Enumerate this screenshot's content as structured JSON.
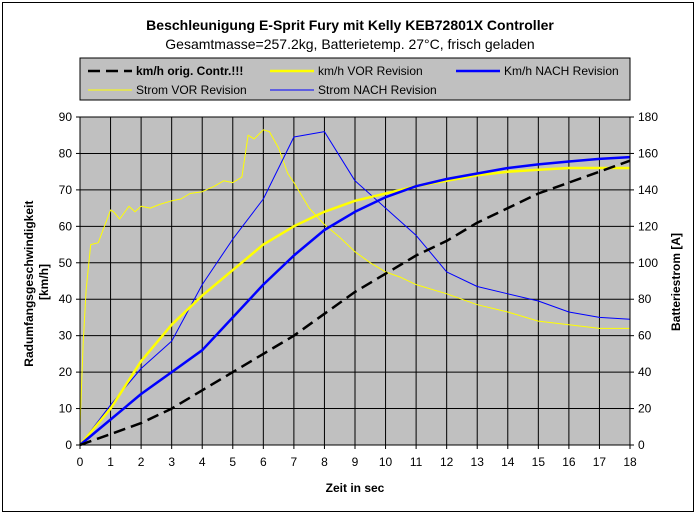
{
  "chart_data": {
    "type": "line",
    "title": "Beschleunigung E-Sprit Fury mit Kelly KEB72801X Controller",
    "subtitle": "Gesamtmasse=257.2kg, Batterietemp. 27°C, frisch geladen",
    "xlabel": "Zeit in sec",
    "ylabel": "Radumfangsgeschwindigkeit [km/h]",
    "y2label": "Batteriestrom [A]",
    "xlim": [
      0,
      18
    ],
    "ylim": [
      0,
      90
    ],
    "y2lim": [
      0,
      180
    ],
    "x_ticks": [
      "0",
      "1",
      "2",
      "3",
      "4",
      "5",
      "6",
      "7",
      "8",
      "9",
      "10",
      "11",
      "12",
      "13",
      "14",
      "15",
      "16",
      "17",
      "18"
    ],
    "y_ticks": [
      "0",
      "10",
      "20",
      "30",
      "40",
      "50",
      "60",
      "70",
      "80",
      "90"
    ],
    "y2_ticks": [
      "0",
      "20",
      "40",
      "60",
      "80",
      "100",
      "120",
      "140",
      "160",
      "180"
    ],
    "grid": true,
    "plot_background": "#c0c0c0",
    "legend_position": "top",
    "series": [
      {
        "name": "km/h orig. Contr.!!!",
        "axis": "left",
        "color": "#000000",
        "dash": "dashed",
        "width": 2.5,
        "points": [
          [
            0,
            0
          ],
          [
            1,
            3
          ],
          [
            2,
            6
          ],
          [
            3,
            10
          ],
          [
            4,
            15
          ],
          [
            5,
            20
          ],
          [
            6,
            25
          ],
          [
            7,
            30
          ],
          [
            8,
            36
          ],
          [
            9,
            42
          ],
          [
            10,
            47
          ],
          [
            11,
            52
          ],
          [
            12,
            56
          ],
          [
            13,
            61
          ],
          [
            14,
            65
          ],
          [
            15,
            69
          ],
          [
            16,
            72
          ],
          [
            17,
            75
          ],
          [
            18,
            78
          ]
        ]
      },
      {
        "name": "km/h VOR Revision",
        "axis": "left",
        "color": "#ffff00",
        "dash": "solid",
        "width": 2.5,
        "points": [
          [
            0,
            0
          ],
          [
            1,
            10
          ],
          [
            2,
            23
          ],
          [
            3,
            33
          ],
          [
            4,
            41
          ],
          [
            5,
            48
          ],
          [
            6,
            55
          ],
          [
            7,
            60
          ],
          [
            8,
            64
          ],
          [
            9,
            67
          ],
          [
            10,
            69
          ],
          [
            11,
            71
          ],
          [
            12,
            72.5
          ],
          [
            13,
            74
          ],
          [
            14,
            75
          ],
          [
            15,
            75.5
          ],
          [
            16,
            76
          ],
          [
            17,
            76
          ],
          [
            18,
            76
          ]
        ]
      },
      {
        "name": "Km/h NACH Revision",
        "axis": "left",
        "color": "#0000ff",
        "dash": "solid",
        "width": 2.5,
        "points": [
          [
            0,
            0
          ],
          [
            1,
            7
          ],
          [
            2,
            14
          ],
          [
            3,
            20
          ],
          [
            4,
            26
          ],
          [
            5,
            35
          ],
          [
            6,
            44
          ],
          [
            7,
            52
          ],
          [
            8,
            59
          ],
          [
            9,
            64
          ],
          [
            10,
            68
          ],
          [
            11,
            71
          ],
          [
            12,
            73
          ],
          [
            13,
            74.5
          ],
          [
            14,
            76
          ],
          [
            15,
            77
          ],
          [
            16,
            77.8
          ],
          [
            17,
            78.5
          ],
          [
            18,
            79
          ]
        ]
      },
      {
        "name": "Strom VOR Revision",
        "axis": "right",
        "color": "#ffff00",
        "dash": "solid",
        "width": 1,
        "points": [
          [
            0,
            10
          ],
          [
            0.1,
            55
          ],
          [
            0.2,
            85
          ],
          [
            0.35,
            110
          ],
          [
            0.6,
            111
          ],
          [
            0.8,
            120
          ],
          [
            1.0,
            129
          ],
          [
            1.1,
            128
          ],
          [
            1.3,
            124
          ],
          [
            1.6,
            131
          ],
          [
            1.8,
            128
          ],
          [
            2.0,
            131
          ],
          [
            2.3,
            130
          ],
          [
            2.6,
            132
          ],
          [
            3.0,
            134
          ],
          [
            3.3,
            135
          ],
          [
            3.6,
            138
          ],
          [
            4.0,
            139
          ],
          [
            4.4,
            142
          ],
          [
            4.7,
            145
          ],
          [
            5.0,
            144
          ],
          [
            5.3,
            147
          ],
          [
            5.5,
            170
          ],
          [
            5.7,
            168
          ],
          [
            6.0,
            173
          ],
          [
            6.2,
            172
          ],
          [
            6.5,
            163
          ],
          [
            6.8,
            149
          ],
          [
            7.0,
            144
          ],
          [
            7.5,
            130
          ],
          [
            8.0,
            121
          ],
          [
            8.5,
            114
          ],
          [
            9.0,
            106
          ],
          [
            9.5,
            100
          ],
          [
            10.0,
            95
          ],
          [
            10.5,
            92
          ],
          [
            11.0,
            88
          ],
          [
            12.0,
            83
          ],
          [
            13.0,
            77
          ],
          [
            14.0,
            73
          ],
          [
            15.0,
            68
          ],
          [
            16.0,
            66
          ],
          [
            17.0,
            64
          ],
          [
            18.0,
            64
          ]
        ]
      },
      {
        "name": "Strom NACH Revision",
        "axis": "right",
        "color": "#0000ff",
        "dash": "solid",
        "width": 1,
        "points": [
          [
            0,
            0
          ],
          [
            1,
            22
          ],
          [
            2,
            42
          ],
          [
            3,
            57
          ],
          [
            4,
            88
          ],
          [
            5,
            113
          ],
          [
            6,
            135
          ],
          [
            7,
            169
          ],
          [
            8,
            172
          ],
          [
            9,
            145
          ],
          [
            10,
            130
          ],
          [
            11,
            115
          ],
          [
            12,
            95
          ],
          [
            13,
            87
          ],
          [
            14,
            83
          ],
          [
            15,
            79
          ],
          [
            16,
            73
          ],
          [
            17,
            70
          ],
          [
            18,
            69
          ]
        ]
      }
    ]
  }
}
